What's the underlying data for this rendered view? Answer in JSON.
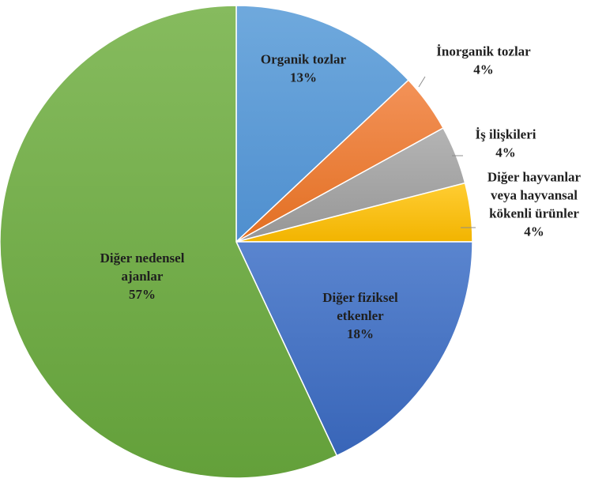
{
  "chart_data": {
    "type": "pie",
    "title": "",
    "slices": [
      {
        "label": [
          "Organik tozlar"
        ],
        "value": 13,
        "display": "13%",
        "color": "#5b9bd5"
      },
      {
        "label": [
          "İnorganik tozlar"
        ],
        "value": 4,
        "display": "4%",
        "color": "#ed7d31"
      },
      {
        "label": [
          "İş ilişkileri"
        ],
        "value": 4,
        "display": "4%",
        "color": "#a5a5a5"
      },
      {
        "label": [
          "Diğer hayvanlar",
          "veya hayvansal",
          "kökenli ürünler"
        ],
        "value": 4,
        "display": "4%",
        "color": "#ffc000"
      },
      {
        "label": [
          "Diğer fiziksel",
          "etkenler"
        ],
        "value": 18,
        "display": "18%",
        "color": "#4472c4"
      },
      {
        "label": [
          "Diğer nedensel",
          "ajanlar"
        ],
        "value": 57,
        "display": "57%",
        "color": "#70ad47"
      }
    ],
    "start_angle": "12 o'clock",
    "direction": "clockwise",
    "legend": "none",
    "label_position": [
      "inside",
      "outside",
      "outside",
      "outside",
      "inside",
      "inside"
    ]
  }
}
